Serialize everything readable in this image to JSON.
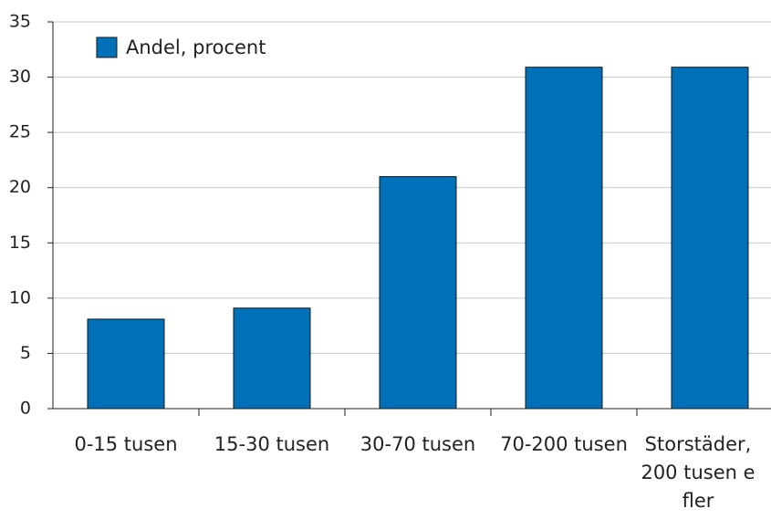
{
  "chart_data": {
    "type": "bar",
    "categories": [
      "0-15 tusen",
      "15-30 tusen",
      "30-70 tusen",
      "70-200 tusen",
      "Storstäder, 200 tusen e fler"
    ],
    "series": [
      {
        "name": "Andel, procent",
        "color": "#0070b8",
        "values": [
          8.1,
          9.1,
          21,
          30.9,
          30.9
        ]
      }
    ],
    "ylim": [
      0,
      35
    ],
    "yticks": [
      0,
      5,
      10,
      15,
      20,
      25,
      30,
      35
    ],
    "grid": true,
    "legend": "top-left"
  }
}
